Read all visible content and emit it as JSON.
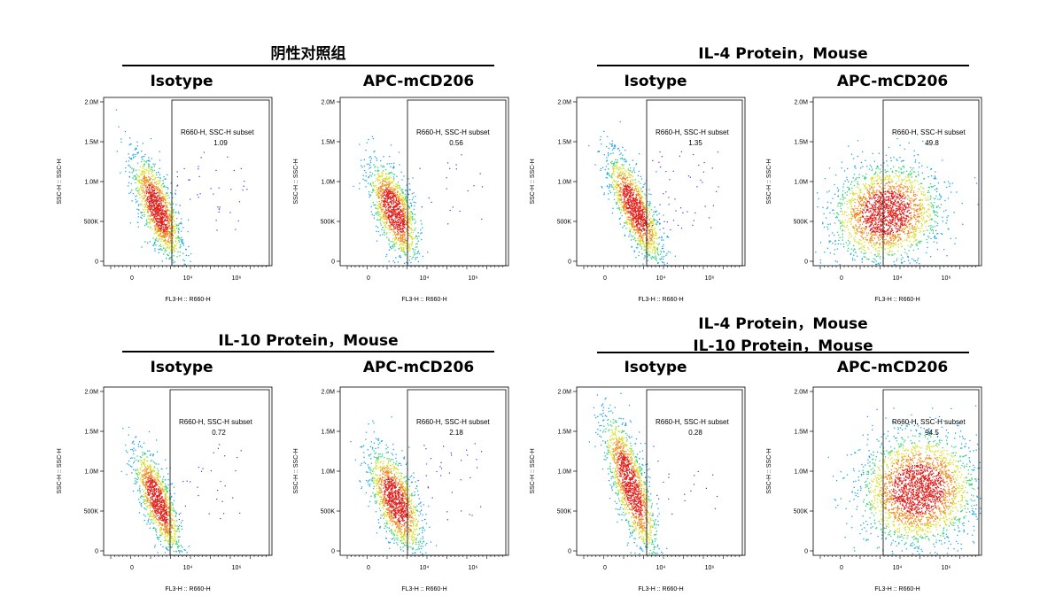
{
  "groups": [
    {
      "title": "阴性对照组"
    },
    {
      "title": "IL-4 Protein，Mouse"
    },
    {
      "title": "IL-10 Protein，Mouse"
    },
    {
      "title_line1": "IL-4 Protein，Mouse",
      "title_line2": "IL-10 Protein，Mouse"
    }
  ],
  "panel_labels": {
    "isotype": "Isotype",
    "apc": "APC-mCD206"
  },
  "axes": {
    "xlabel": "FL3-H :: R660-H",
    "ylabel": "SSC-H :: SSC-H",
    "y_ticks": [
      "0",
      "500K",
      "1.0M",
      "1.5M",
      "2.0M"
    ],
    "x_ticks": [
      "0",
      "10⁴",
      "10⁶"
    ],
    "ylim": [
      0,
      2000000
    ]
  },
  "gate_label": "R660-H, SSC-H subset",
  "chart_data": [
    {
      "type": "scatter",
      "group": "阴性对照组",
      "sample": "Isotype",
      "gate_percent": "1.09"
    },
    {
      "type": "scatter",
      "group": "阴性对照组",
      "sample": "APC-mCD206",
      "gate_percent": "0.56"
    },
    {
      "type": "scatter",
      "group": "IL-4 Protein，Mouse",
      "sample": "Isotype",
      "gate_percent": "1.35"
    },
    {
      "type": "scatter",
      "group": "IL-4 Protein，Mouse",
      "sample": "APC-mCD206",
      "gate_percent": "49.8"
    },
    {
      "type": "scatter",
      "group": "IL-10 Protein，Mouse",
      "sample": "Isotype",
      "gate_percent": "0.72"
    },
    {
      "type": "scatter",
      "group": "IL-10 Protein，Mouse",
      "sample": "APC-mCD206",
      "gate_percent": "2.18"
    },
    {
      "type": "scatter",
      "group": "IL-4 Protein，Mouse + IL-10 Protein，Mouse",
      "sample": "Isotype",
      "gate_percent": "0.28"
    },
    {
      "type": "scatter",
      "group": "IL-4 Protein，Mouse + IL-10 Protein，Mouse",
      "sample": "APC-mCD206",
      "gate_percent": "94.5"
    }
  ]
}
